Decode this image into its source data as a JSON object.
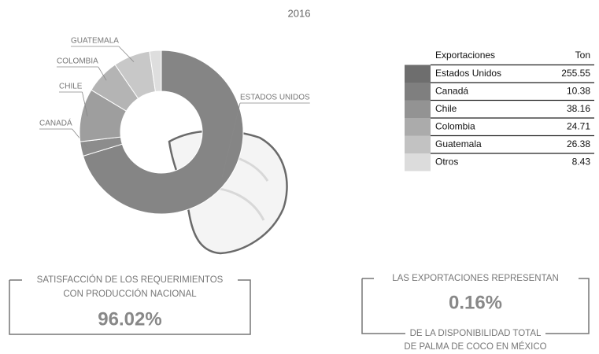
{
  "chart_data": {
    "type": "donut",
    "title": "2016",
    "categories": [
      "ESTADOS UNIDOS",
      "CANADÁ",
      "CHILE",
      "COLOMBIA",
      "GUATEMALA",
      null
    ],
    "values": [
      255.55,
      10.38,
      38.16,
      24.71,
      26.38,
      8.43
    ],
    "colors": [
      "#858585",
      "#8c8c8c",
      "#9e9e9e",
      "#b4b4b4",
      "#c8c8c8",
      "#dedede"
    ]
  },
  "table": {
    "header": [
      "Exportaciones",
      "Ton"
    ],
    "names": [
      "Estados Unidos",
      "Canadá",
      "Chile",
      "Colombia",
      "Guatemala",
      "Otros"
    ],
    "swatches": [
      "#6e6e6e",
      "#7f7f7f",
      "#939393",
      "#ababab",
      "#c2c2c2",
      "#dcdcdc"
    ]
  },
  "left_box": {
    "lines": [
      "SATISFACCIÓN DE LOS REQUERIMIENTOS",
      "CON PRODUCCIÓN NACIONAL"
    ],
    "value": "96.02%"
  },
  "right_box": {
    "top": "LAS EXPORTACIONES REPRESENTAN",
    "value": "0.16%",
    "bottom": [
      "DE LA DISPONIBILIDAD TOTAL",
      "DE PALMA DE COCO EN MÉXICO"
    ]
  }
}
